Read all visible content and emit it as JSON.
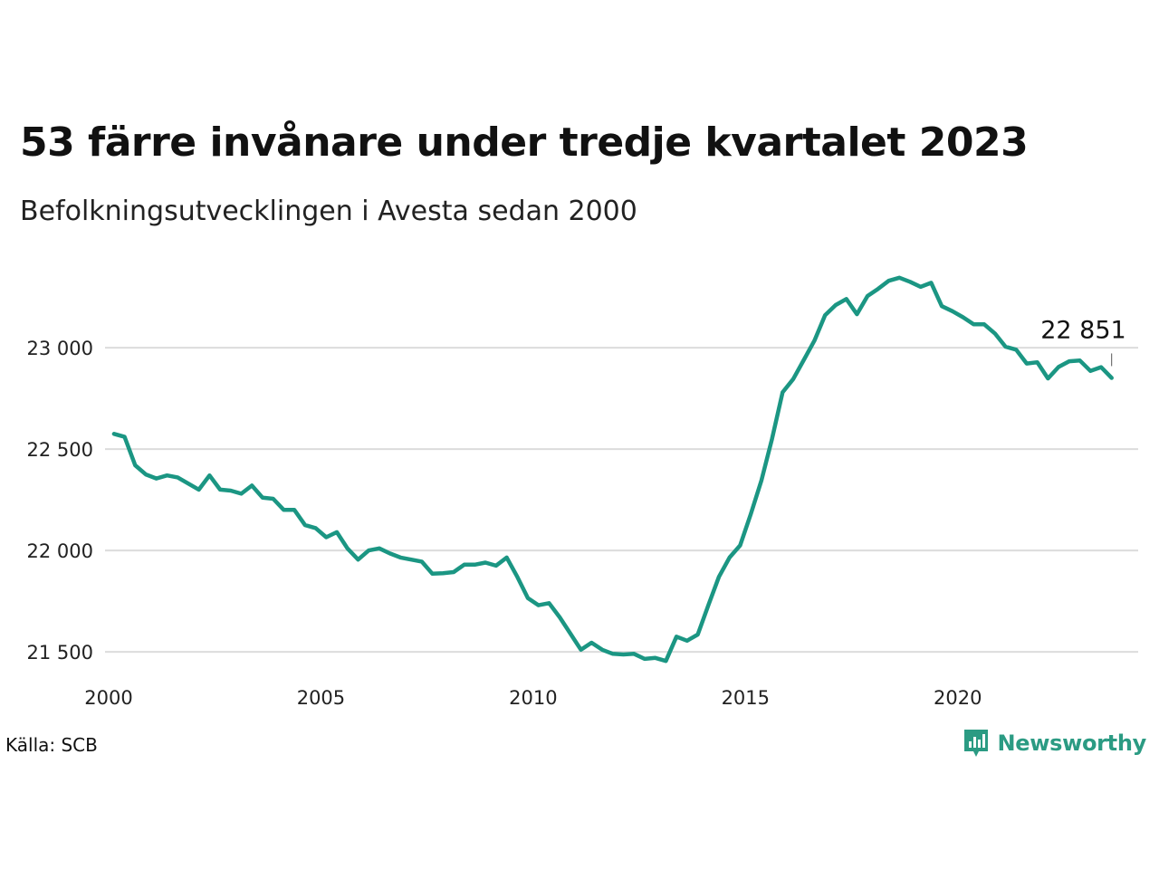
{
  "header": {
    "title": "53 färre invånare under tredje kvartalet 2023",
    "subtitle": "Befolkningsutvecklingen i Avesta sedan 2000"
  },
  "footer": {
    "source": "Källa: SCB",
    "brand": "Newsworthy",
    "brand_icon": "newsworthy-logo-icon",
    "brand_color": "#2b9b83"
  },
  "chart_data": {
    "type": "line",
    "title": "53 färre invånare under tredje kvartalet 2023",
    "subtitle": "Befolkningsutvecklingen i Avesta sedan 2000",
    "xlabel": "",
    "ylabel": "",
    "x_ticks": [
      2000,
      2005,
      2010,
      2015,
      2020
    ],
    "y_ticks": [
      21500,
      22000,
      22500,
      23000
    ],
    "y_tick_labels": [
      "21 500",
      "22 000",
      "22 500",
      "23 000"
    ],
    "x_tick_labels": [
      "2000",
      "2005",
      "2010",
      "2015",
      "2020"
    ],
    "xlim": [
      2000,
      2024.25
    ],
    "ylim": [
      21420,
      23420
    ],
    "grid": "horizontal",
    "legend": "none",
    "line_color": "#1b9683",
    "end_label": "22 851",
    "series": [
      {
        "x": [
          2000.125,
          2000.375,
          2000.625,
          2000.875,
          2001.125,
          2001.375,
          2001.625,
          2001.875,
          2002.125,
          2002.375,
          2002.625,
          2002.875,
          2003.125,
          2003.375,
          2003.625,
          2003.875,
          2004.125,
          2004.375,
          2004.625,
          2004.875,
          2005.125,
          2005.375,
          2005.625,
          2005.875,
          2006.125,
          2006.375,
          2006.625,
          2006.875,
          2007.125,
          2007.375,
          2007.625,
          2007.875,
          2008.125,
          2008.375,
          2008.625,
          2008.875,
          2009.125,
          2009.375,
          2009.625,
          2009.875,
          2010.125,
          2010.375,
          2010.625,
          2010.875,
          2011.125,
          2011.375,
          2011.625,
          2011.875,
          2012.125,
          2012.375,
          2012.625,
          2012.875,
          2013.125,
          2013.375,
          2013.625,
          2013.875,
          2014.125,
          2014.375,
          2014.625,
          2014.875,
          2015.125,
          2015.375,
          2015.625,
          2015.875,
          2016.125,
          2016.375,
          2016.625,
          2016.875,
          2017.125,
          2017.375,
          2017.625,
          2017.875,
          2018.125,
          2018.375,
          2018.625,
          2018.875,
          2019.125,
          2019.375,
          2019.625,
          2019.875,
          2020.125,
          2020.375,
          2020.625,
          2020.875,
          2021.125,
          2021.375,
          2021.625,
          2021.875,
          2022.125,
          2022.375,
          2022.625,
          2022.875,
          2023.125,
          2023.375,
          2023.625
        ],
        "y": [
          22575,
          22560,
          22420,
          22375,
          22355,
          22370,
          22360,
          22330,
          22300,
          22370,
          22300,
          22295,
          22280,
          22320,
          22260,
          22255,
          22200,
          22200,
          22125,
          22110,
          22065,
          22090,
          22010,
          21955,
          22000,
          22010,
          21985,
          21965,
          21955,
          21945,
          21885,
          21888,
          21893,
          21930,
          21930,
          21940,
          21925,
          21965,
          21870,
          21765,
          21730,
          21740,
          21670,
          21590,
          21510,
          21545,
          21510,
          21490,
          21487,
          21490,
          21465,
          21470,
          21455,
          21575,
          21555,
          21585,
          21730,
          21870,
          21965,
          22025,
          22180,
          22345,
          22550,
          22780,
          22845,
          22940,
          23035,
          23160,
          23210,
          23240,
          23165,
          23255,
          23290,
          23330,
          23345,
          23325,
          23300,
          23320,
          23205,
          23180,
          23150,
          23115,
          23115,
          23070,
          23005,
          22990,
          22922,
          22928,
          22848,
          22905,
          22933,
          22937,
          22885,
          22904,
          22851
        ]
      }
    ]
  }
}
